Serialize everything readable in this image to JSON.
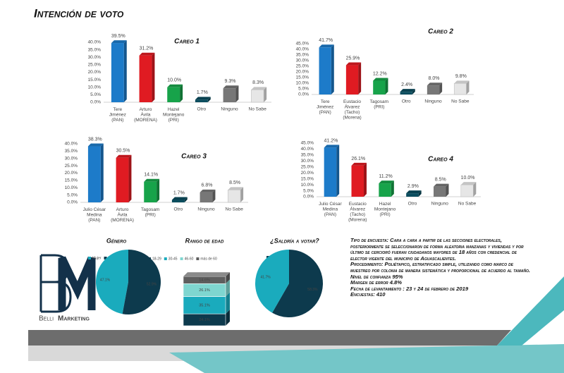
{
  "title": "Intención de voto",
  "logo": {
    "first": "Belli",
    "second": "Marketing"
  },
  "methodology": [
    "Tipo de encuesta: Cara a cara a partir de las secciones electorales, posteriormente se seleccionaron de forma aleatoria manzanas y viviendas y por último se cercioró fueran ciudadanos mayores de 18 años con credencial de elector vigente del municipio de Aguascalientes.",
    "Procedimiento: Poliétapico, estratificado simple, utilizando como marco de muestreo por colonia de manera sistemática y proporcional de acuerdo al tamaño.",
    "Nivel de confianza 95%",
    "Margen de error 4.8%",
    "Fecha de levantamiento : 23 y 24 de febrero de 2019",
    "Encuestas: 410"
  ],
  "chart_data": [
    {
      "type": "bar",
      "title": "Careo 1",
      "categories": [
        "Tere\nJiménez\n(PAN)",
        "Arturo\nÁvila\n(MORENA)",
        "Hazel\nMontejano\n(PRI)",
        "Otro",
        "Ninguno",
        "No Sabe"
      ],
      "values": [
        39.5,
        31.2,
        10.0,
        1.7,
        9.3,
        8.3
      ],
      "value_labels": [
        "39.5%",
        "31.2%",
        "10.0%",
        "1.7%",
        "9.3%",
        "8.3%"
      ],
      "colors": [
        "#1d7bc9",
        "#e01b22",
        "#17a34a",
        "#0b4d5e",
        "#777777",
        "#e6e6e6"
      ],
      "ylim": [
        0,
        40
      ],
      "yticks": [
        {
          "value": 0,
          "label": "0.0%"
        },
        {
          "value": 5,
          "label": "5.0%"
        },
        {
          "value": 10,
          "label": "10.0%"
        },
        {
          "value": 15,
          "label": "15.0%"
        },
        {
          "value": 20,
          "label": "20.0%"
        },
        {
          "value": 25,
          "label": "25.0%"
        },
        {
          "value": 30,
          "label": "30.0%"
        },
        {
          "value": 35,
          "label": "35.0%"
        },
        {
          "value": 40,
          "label": "40.0%"
        }
      ]
    },
    {
      "type": "bar",
      "title": "Careo 2",
      "categories": [
        "Tere\nJiménez\n(PAN)",
        "Eustacio\nÁlvarez\n(Tacho)\n(Morena)",
        "Tagosam\n(PRI)",
        "Otro",
        "Ninguno",
        "No Sabe"
      ],
      "values": [
        41.7,
        25.9,
        12.2,
        2.4,
        8.0,
        9.8
      ],
      "value_labels": [
        "41.7%",
        "25.9%",
        "12.2%",
        "2.4%",
        "8.0%",
        "9.8%"
      ],
      "colors": [
        "#1d7bc9",
        "#e01b22",
        "#17a34a",
        "#0b4d5e",
        "#777777",
        "#e6e6e6"
      ],
      "ylim": [
        0,
        45
      ],
      "yticks": [
        {
          "value": 0,
          "label": "0.0%"
        },
        {
          "value": 5,
          "label": "5.0%"
        },
        {
          "value": 10,
          "label": "10.0%"
        },
        {
          "value": 15,
          "label": "15.0%"
        },
        {
          "value": 20,
          "label": "20.0%"
        },
        {
          "value": 25,
          "label": "25.0%"
        },
        {
          "value": 30,
          "label": "30.0%"
        },
        {
          "value": 35,
          "label": "35.0%"
        },
        {
          "value": 40,
          "label": "40.0%"
        },
        {
          "value": 45,
          "label": "45.0%"
        }
      ]
    },
    {
      "type": "bar",
      "title": "Careo 3",
      "categories": [
        "Julio César\nMedina\n(PAN)",
        "Arturo\nÁvila\n(MORENA)",
        "Tagosam\n(PRI)",
        "Otro",
        "Ninguno",
        "No Sabe"
      ],
      "values": [
        38.3,
        30.5,
        14.1,
        1.7,
        6.8,
        8.5
      ],
      "value_labels": [
        "38.3%",
        "30.5%",
        "14.1%",
        "1.7%",
        "6.8%",
        "8.5%"
      ],
      "colors": [
        "#1d7bc9",
        "#e01b22",
        "#17a34a",
        "#0b4d5e",
        "#777777",
        "#e6e6e6"
      ],
      "ylim": [
        0,
        40
      ],
      "yticks": [
        {
          "value": 0,
          "label": "0.0%"
        },
        {
          "value": 5,
          "label": "5.0%"
        },
        {
          "value": 10,
          "label": "10.0%"
        },
        {
          "value": 15,
          "label": "15.0%"
        },
        {
          "value": 20,
          "label": "20.0%"
        },
        {
          "value": 25,
          "label": "25.0%"
        },
        {
          "value": 30,
          "label": "30.0%"
        },
        {
          "value": 35,
          "label": "35.0%"
        },
        {
          "value": 40,
          "label": "40.0%"
        }
      ]
    },
    {
      "type": "bar",
      "title": "Careo 4",
      "categories": [
        "Julio César\nMedina\n(PAN)",
        "Eustacio\nÁlvarez\n(Tacho)\n(Morena)",
        "Hazel\nMontejano\n(PRI)",
        "Otro",
        "Ninguno",
        "No Sabe"
      ],
      "values": [
        41.2,
        26.1,
        11.2,
        2.9,
        8.5,
        10.0
      ],
      "value_labels": [
        "41.2%",
        "26.1%",
        "11.2%",
        "2.9%",
        "8.5%",
        "10.0%"
      ],
      "colors": [
        "#1d7bc9",
        "#e01b22",
        "#17a34a",
        "#0b4d5e",
        "#777777",
        "#e6e6e6"
      ],
      "ylim": [
        0,
        45
      ],
      "yticks": [
        {
          "value": 0,
          "label": "0.0%"
        },
        {
          "value": 5,
          "label": "5.0%"
        },
        {
          "value": 10,
          "label": "10.0%"
        },
        {
          "value": 15,
          "label": "15.0%"
        },
        {
          "value": 20,
          "label": "20.0%"
        },
        {
          "value": 25,
          "label": "25.0%"
        },
        {
          "value": 30,
          "label": "30.0%"
        },
        {
          "value": 35,
          "label": "35.0%"
        },
        {
          "value": 40,
          "label": "40.0%"
        },
        {
          "value": 45,
          "label": "45.0%"
        }
      ]
    },
    {
      "type": "pie",
      "title": "Género",
      "direction": "counterclockwise",
      "series": [
        {
          "name": "Mujer",
          "color": "#1aabbd",
          "values": [
            47.1
          ],
          "value_labels": [
            "47.1%"
          ]
        },
        {
          "name": "Hombre",
          "color": "#0d3a4d",
          "values": [
            52.9
          ],
          "value_labels": [
            "52.9%"
          ]
        }
      ]
    },
    {
      "type": "stack",
      "title": "Rango de edad",
      "series": [
        {
          "name": "18-29",
          "color": "#0d3a4d",
          "values": [
            24.1
          ],
          "value_labels": [
            "24.1%"
          ]
        },
        {
          "name": "30-45",
          "color": "#1aabbd",
          "values": [
            35.1
          ],
          "value_labels": [
            "35.1%"
          ]
        },
        {
          "name": "46-60",
          "color": "#7fd6d0",
          "values": [
            26.1
          ],
          "value_labels": [
            "26.1%"
          ]
        },
        {
          "name": "más de 60",
          "color": "#5e5e5e",
          "values": [
            14.6
          ],
          "value_labels": [
            "14.6%"
          ]
        }
      ]
    },
    {
      "type": "pie",
      "title": "¿Saldría a votar?",
      "direction": "clockwise",
      "series": [
        {
          "name": "Sí",
          "color": "#0d3a4d",
          "values": [
            58.3
          ],
          "value_labels": [
            "58.3%"
          ]
        },
        {
          "name": "No",
          "color": "#1aabbd",
          "values": [
            41.7
          ],
          "value_labels": [
            "41.7%"
          ]
        }
      ]
    }
  ]
}
